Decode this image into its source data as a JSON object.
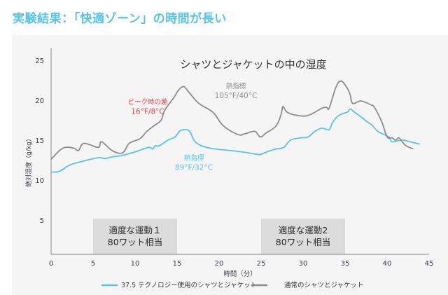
{
  "heading": "実験結果：「快適ゾーン」の時間が長い",
  "colors": {
    "heading": "#5ac3e3",
    "series_blue": "#5ac3e3",
    "series_gray": "#8c8c8c",
    "annotation_red": "#e8424a",
    "annotation_gray": "#8c8c8c",
    "annotation_blue": "#5ac3e3",
    "band": "#dcdcdc",
    "panel": "#f5f5f5",
    "axis": "#9a9a9a"
  },
  "chart_data": {
    "type": "line",
    "title": "シャツとジャケットの中の湿度",
    "xlabel": "時間（分）",
    "ylabel": "絶対湿度（g/kg）",
    "xlim": [
      0,
      45
    ],
    "ylim": [
      0.7,
      26.5
    ],
    "xticks": [
      0,
      5,
      10,
      15,
      20,
      25,
      30,
      35,
      40,
      45
    ],
    "yticks": [
      5,
      10,
      15,
      20,
      25
    ],
    "grid": false,
    "legend_position": "bottom",
    "series": [
      {
        "name": "37.5 テクノロジー使用のシャツとジャケット",
        "color": "#5ac3e3",
        "x": [
          0,
          1,
          2.25,
          3.9,
          5.6,
          6.4,
          7.25,
          8.5,
          10.2,
          11,
          11.7,
          12.1,
          12.4,
          12.9,
          13.9,
          14.75,
          15.4,
          16.2,
          16.6,
          17.25,
          18.9,
          22.25,
          24.1,
          24.9,
          25.6,
          26.8,
          27.7,
          28.5,
          29.75,
          30.6,
          31.4,
          32.25,
          33.1,
          33.5,
          34.25,
          35.25,
          35.6,
          36,
          36.9,
          37.75,
          38.2,
          38.9,
          40.2,
          40.6,
          41.8,
          43.1,
          43.9
        ],
        "y": [
          11.0,
          11.1,
          11.9,
          12.4,
          12.8,
          12.7,
          12.9,
          13.1,
          13.6,
          13.9,
          14.1,
          13.9,
          14.3,
          14.3,
          15.0,
          15.4,
          16.2,
          16.3,
          15.9,
          14.7,
          14.0,
          13.6,
          13.3,
          13.2,
          13.5,
          13.9,
          14.1,
          15.0,
          15.3,
          15.4,
          16.1,
          16.5,
          16.3,
          17.2,
          18.1,
          18.5,
          18.9,
          18.6,
          17.9,
          17.2,
          16.9,
          16.1,
          15.4,
          14.8,
          15.0,
          14.7,
          14.5
        ]
      },
      {
        "name": "通常のシャツとジャケット",
        "color": "#8c8c8c",
        "x": [
          0,
          1.4,
          2.7,
          3.25,
          3.9,
          5.6,
          6,
          7.25,
          8.5,
          9.3,
          10.6,
          11.4,
          12.25,
          13.1,
          13.5,
          14.6,
          15.2,
          15.8,
          16.4,
          17.6,
          19.25,
          20.5,
          22.25,
          23.1,
          24.25,
          24.9,
          25.6,
          26.8,
          27.4,
          27.6,
          28.1,
          29.3,
          30.6,
          32.25,
          32.8,
          33.1,
          33.9,
          34.5,
          35.2,
          35.6,
          35.9,
          36.9,
          38.1,
          38.5,
          39.4,
          40,
          40.6,
          41,
          41.4,
          41.8,
          42.25,
          43.1
        ],
        "y": [
          12.6,
          14.0,
          14.0,
          13.7,
          14.6,
          14.1,
          14.8,
          13.7,
          13.4,
          14.6,
          15.2,
          16.1,
          16.8,
          17.5,
          18.7,
          20.3,
          21.3,
          21.7,
          21.0,
          19.6,
          18.5,
          16.8,
          15.7,
          15.8,
          16.1,
          15.4,
          15.9,
          16.8,
          18.3,
          19.2,
          18.5,
          18.1,
          18.1,
          19.0,
          19.1,
          19.0,
          21.6,
          22.4,
          21.6,
          20.7,
          19.6,
          19.9,
          19.4,
          19.1,
          17.2,
          15.4,
          15.3,
          15.0,
          15.3,
          14.8,
          14.3,
          13.9
        ]
      }
    ],
    "bands": [
      {
        "x_start": 5,
        "x_end": 15,
        "line1": "適度な運動１",
        "line2": "80ワット相当"
      },
      {
        "x_start": 25,
        "x_end": 35,
        "line1": "適度な運動2",
        "line2": "80ワット相当"
      }
    ],
    "annotations": [
      {
        "line1": "ピーク時の差",
        "line2": "16°F/8°C",
        "color": "#e8424a",
        "x": 11.5,
        "y": 19.5
      },
      {
        "line1": "熱指標",
        "line2": "105°F/40°C",
        "color": "#8c8c8c",
        "x": 22,
        "y": 21.5
      },
      {
        "line1": "熱指標",
        "line2": "89°F/32°C",
        "color": "#5ac3e3",
        "x": 17,
        "y": 12.5
      }
    ]
  }
}
